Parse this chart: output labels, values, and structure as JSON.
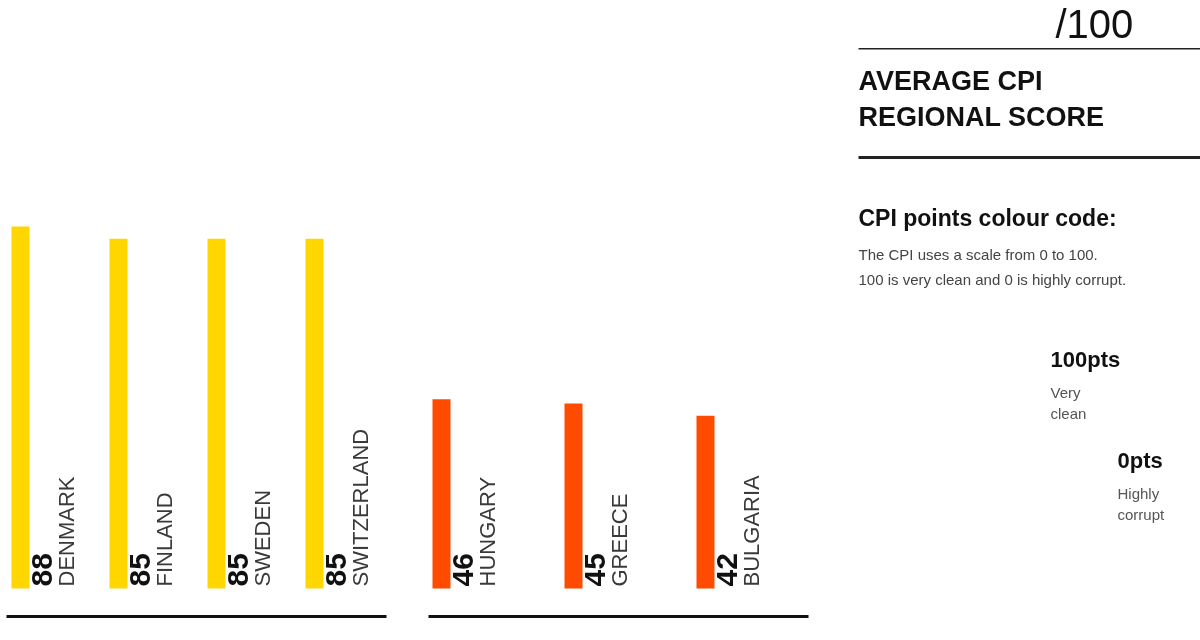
{
  "chart_data": [
    {
      "type": "bar",
      "categories": [
        "DENMARK",
        "FINLAND",
        "SWEDEN",
        "SWITZERLAND"
      ],
      "values": [
        88,
        85,
        85,
        85
      ],
      "color": "#ffd600",
      "data_labels": true
    },
    {
      "type": "bar",
      "categories": [
        "HUNGARY",
        "GREECE",
        "BULGARIA"
      ],
      "values": [
        46,
        45,
        42
      ],
      "color": "#ff4b00",
      "data_labels": true
    },
    {
      "type": "other",
      "title": "AVERAGE CPI REGIONAL SCORE",
      "annotations": [
        "/100",
        "CPI points colour code:",
        "The CPI uses a scale from 0 to 100.",
        "100 is very clean and 0 is highly corrupt.",
        "100pts",
        "Very clean",
        "0pts",
        "Highly corrupt"
      ]
    }
  ]
}
